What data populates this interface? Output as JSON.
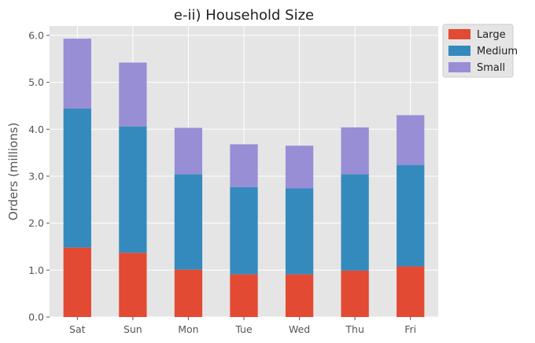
{
  "chart_data": {
    "type": "bar",
    "stacked": true,
    "title": "e-ii) Household Size",
    "xlabel": "",
    "ylabel": "Orders (millions)",
    "categories": [
      "Sat",
      "Sun",
      "Mon",
      "Tue",
      "Wed",
      "Thu",
      "Fri"
    ],
    "ylim": [
      0,
      6.2
    ],
    "yticks": [
      "0.0",
      "1.0",
      "2.0",
      "3.0",
      "4.0",
      "5.0",
      "6.0"
    ],
    "grid": true,
    "legend_position": "outside-top-right",
    "series": [
      {
        "name": "Large",
        "color": "#E24A33",
        "values": [
          1.48,
          1.37,
          1.01,
          0.91,
          0.91,
          0.99,
          1.08
        ]
      },
      {
        "name": "Medium",
        "color": "#348ABD",
        "values": [
          2.96,
          2.69,
          2.03,
          1.86,
          1.83,
          2.05,
          2.16
        ]
      },
      {
        "name": "Small",
        "color": "#988ED5",
        "values": [
          1.49,
          1.36,
          0.99,
          0.91,
          0.91,
          1.0,
          1.06
        ]
      }
    ]
  }
}
